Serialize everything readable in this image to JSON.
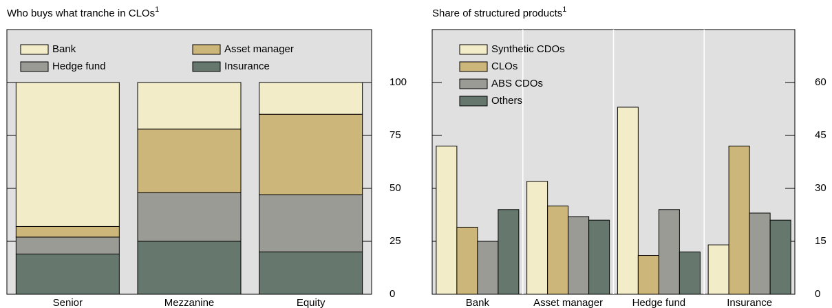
{
  "chart_data": [
    {
      "type": "stacked_bar",
      "title": "Who buys what tranche in CLOs",
      "title_superscript": "1",
      "categories": [
        "Senior",
        "Mezzanine",
        "Equity"
      ],
      "series": [
        {
          "name": "Bank",
          "color": "#f3ecc8",
          "values": [
            68,
            22,
            15
          ]
        },
        {
          "name": "Asset manager",
          "color": "#cdb67a",
          "values": [
            5,
            30,
            38
          ]
        },
        {
          "name": "Hedge fund",
          "color": "#999b94",
          "values": [
            8,
            23,
            27
          ]
        },
        {
          "name": "Insurance",
          "color": "#66776e",
          "values": [
            19,
            25,
            20
          ]
        }
      ],
      "ylim": [
        0,
        125
      ],
      "yticks": [
        0,
        25,
        50,
        75,
        100
      ]
    },
    {
      "type": "bar",
      "title": "Share of structured products",
      "title_superscript": "1",
      "categories": [
        "Bank",
        "Asset manager",
        "Hedge fund",
        "Insurance"
      ],
      "series": [
        {
          "name": "Synthetic CDOs",
          "color": "#f3ecc8",
          "values": [
            42,
            32,
            53,
            14
          ]
        },
        {
          "name": "CLOs",
          "color": "#cdb67a",
          "values": [
            19,
            25,
            11,
            42
          ]
        },
        {
          "name": "ABS CDOs",
          "color": "#999b94",
          "values": [
            15,
            22,
            24,
            23
          ]
        },
        {
          "name": "Others",
          "color": "#66776e",
          "values": [
            24,
            21,
            12,
            21
          ]
        }
      ],
      "ylim": [
        0,
        75
      ],
      "yticks": [
        0,
        15,
        30,
        45,
        60
      ]
    }
  ]
}
